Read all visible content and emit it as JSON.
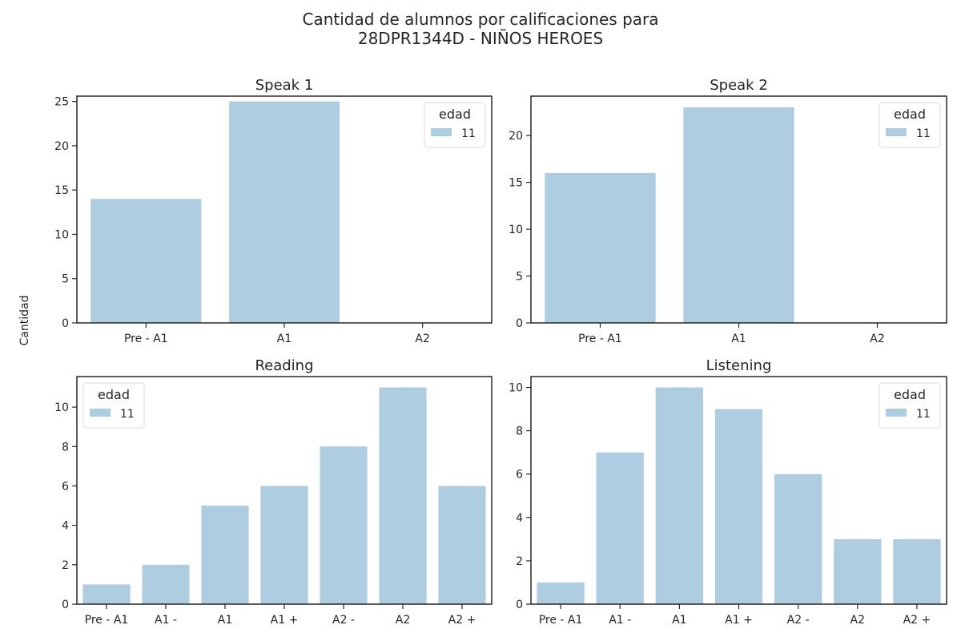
{
  "figure": {
    "title_line1": "Cantidad de alumnos por calificaciones para",
    "title_line2": "28DPR1344D - NIÑOS HEROES",
    "ylabel": "Cantidad"
  },
  "colors": {
    "bar": "#aecde0",
    "axis": "#262626",
    "text": "#262626"
  },
  "chart_data": [
    {
      "type": "bar",
      "title": "Speak 1",
      "categories": [
        "Pre - A1",
        "A1",
        "A2"
      ],
      "series": [
        {
          "name": "11",
          "values": [
            14,
            25,
            0
          ]
        }
      ],
      "ylim": [
        0,
        25.6
      ],
      "yticks": [
        0,
        5,
        10,
        15,
        20,
        25
      ],
      "legend": {
        "title": "edad",
        "placement": "top-right"
      },
      "grid": false
    },
    {
      "type": "bar",
      "title": "Speak 2",
      "categories": [
        "Pre - A1",
        "A1",
        "A2"
      ],
      "series": [
        {
          "name": "11",
          "values": [
            16,
            23,
            0
          ]
        }
      ],
      "ylim": [
        0,
        24.2
      ],
      "yticks": [
        0,
        5,
        10,
        15,
        20
      ],
      "legend": {
        "title": "edad",
        "placement": "top-right"
      },
      "grid": false
    },
    {
      "type": "bar",
      "title": "Reading",
      "categories": [
        "Pre - A1",
        "A1 -",
        "A1",
        "A1 +",
        "A2 -",
        "A2",
        "A2 +"
      ],
      "series": [
        {
          "name": "11",
          "values": [
            1,
            2,
            5,
            6,
            8,
            11,
            6
          ]
        }
      ],
      "ylim": [
        0,
        11.55
      ],
      "yticks": [
        0,
        2,
        4,
        6,
        8,
        10
      ],
      "legend": {
        "title": "edad",
        "placement": "top-left"
      },
      "grid": false
    },
    {
      "type": "bar",
      "title": "Listening",
      "categories": [
        "Pre - A1",
        "A1 -",
        "A1",
        "A1 +",
        "A2 -",
        "A2",
        "A2 +"
      ],
      "series": [
        {
          "name": "11",
          "values": [
            1,
            7,
            10,
            9,
            6,
            3,
            3
          ]
        }
      ],
      "ylim": [
        0,
        10.5
      ],
      "yticks": [
        0,
        2,
        4,
        6,
        8,
        10
      ],
      "legend": {
        "title": "edad",
        "placement": "top-right"
      },
      "grid": false
    }
  ]
}
